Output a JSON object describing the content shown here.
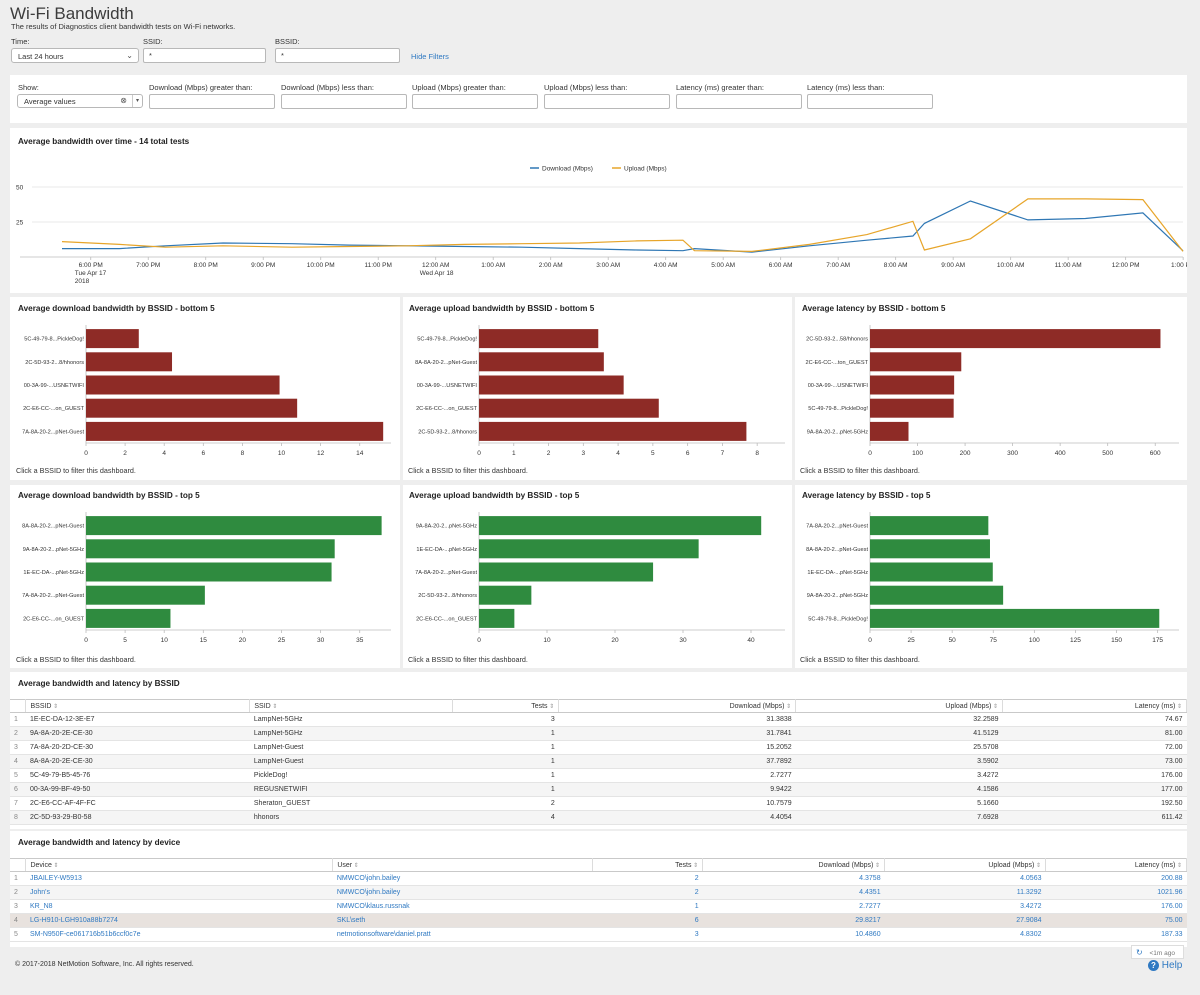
{
  "page": {
    "title": "Wi-Fi Bandwidth",
    "subtitle": "The results of Diagnostics client bandwidth tests on Wi-Fi networks."
  },
  "filters": {
    "time_label": "Time:",
    "time_value": "Last 24 hours",
    "ssid_label": "SSID:",
    "ssid_value": "*",
    "bssid_label": "BSSID:",
    "bssid_value": "*",
    "hide_filters": "Hide Filters"
  },
  "show_filters": {
    "show_label": "Show:",
    "show_value": "Average values",
    "download_gt_label": "Download (Mbps) greater than:",
    "download_lt_label": "Download (Mbps) less than:",
    "upload_gt_label": "Upload (Mbps) greater than:",
    "upload_lt_label": "Upload (Mbps) less than:",
    "latency_gt_label": "Latency (ms) greater than:",
    "latency_lt_label": "Latency (ms) less than:"
  },
  "colors": {
    "download": "#2f77b4",
    "upload": "#e7a52a",
    "bottom_bar": "#8e2b26",
    "top_bar": "#2f8b3f",
    "link": "#2f79c2"
  },
  "chart_hint": "Click a BSSID to filter this dashboard.",
  "chart_data": [
    {
      "id": "timeline",
      "type": "line",
      "title": "Average bandwidth over time - 14 total tests",
      "x": [
        "6:00 PM",
        "7:00 PM",
        "8:00 PM",
        "9:00 PM",
        "10:00 PM",
        "11:00 PM",
        "12:00 AM",
        "1:00 AM",
        "2:00 AM",
        "3:00 AM",
        "4:00 AM",
        "5:00 AM",
        "6:00 AM",
        "7:00 AM",
        "8:00 AM",
        "9:00 AM",
        "10:00 AM",
        "11:00 AM",
        "12:00 PM",
        "1:00 PM"
      ],
      "x_sublabels": {
        "0": [
          "Tue Apr 17",
          "2018"
        ],
        "6": [
          "Wed Apr 18"
        ]
      },
      "yticks": [
        25,
        50
      ],
      "ylim": [
        0,
        55
      ],
      "series": [
        {
          "name": "Download (Mbps)",
          "color": "#2f77b4",
          "points": [
            [
              -0.5,
              6
            ],
            [
              0.5,
              6
            ],
            [
              1.3,
              8
            ],
            [
              2.3,
              10
            ],
            [
              3.5,
              9.5
            ],
            [
              4.5,
              8.5
            ],
            [
              5.5,
              8
            ],
            [
              6.5,
              7.5
            ],
            [
              7.5,
              7
            ],
            [
              8.5,
              6
            ],
            [
              9.5,
              5
            ],
            [
              10.3,
              4.5
            ],
            [
              10.5,
              6
            ],
            [
              11.5,
              3.5
            ],
            [
              12.5,
              8
            ],
            [
              13.5,
              12
            ],
            [
              14.3,
              15
            ],
            [
              14.5,
              24
            ],
            [
              15.3,
              40
            ],
            [
              16.3,
              26.5
            ],
            [
              17.3,
              27.5
            ],
            [
              18.3,
              31.5
            ],
            [
              19.3,
              4.4
            ]
          ]
        },
        {
          "name": "Upload (Mbps)",
          "color": "#e7a52a",
          "points": [
            [
              -0.5,
              11
            ],
            [
              0.5,
              9
            ],
            [
              1.3,
              7
            ],
            [
              2.3,
              8
            ],
            [
              3.5,
              7
            ],
            [
              4.5,
              7.5
            ],
            [
              5.5,
              8
            ],
            [
              6.5,
              9
            ],
            [
              7.5,
              9.5
            ],
            [
              8.5,
              10
            ],
            [
              9.5,
              11.5
            ],
            [
              10.3,
              12
            ],
            [
              10.5,
              4.5
            ],
            [
              11.5,
              4
            ],
            [
              12.5,
              9
            ],
            [
              13.5,
              16
            ],
            [
              14.3,
              25.5
            ],
            [
              14.5,
              5
            ],
            [
              15.3,
              13
            ],
            [
              16.3,
              41.5
            ],
            [
              17.3,
              41.5
            ],
            [
              18.3,
              41
            ],
            [
              19.3,
              4
            ]
          ]
        }
      ]
    },
    {
      "id": "dl_bottom",
      "type": "bar",
      "orientation": "horizontal",
      "title": "Average download bandwidth by BSSID - bottom 5",
      "categories": [
        "5C-49-79-8...PickleDog!",
        "2C-5D-93-2...8/hhonors",
        "00-3A-99-...USNETWIFI",
        "2C-E6-CC-...on_GUEST",
        "7A-8A-20-2...pNet-Guest"
      ],
      "values": [
        2.7,
        4.4,
        9.9,
        10.8,
        15.2
      ],
      "xticks": [
        0,
        2,
        4,
        6,
        8,
        10,
        12,
        14
      ],
      "xlim": [
        0,
        15.6
      ],
      "color": "#8e2b26"
    },
    {
      "id": "ul_bottom",
      "type": "bar",
      "orientation": "horizontal",
      "title": "Average upload bandwidth by BSSID - bottom 5",
      "categories": [
        "5C-49-79-8...PickleDog!",
        "8A-8A-20-2...pNet-Guest",
        "00-3A-99-...USNETWIFI",
        "2C-E6-CC-...on_GUEST",
        "2C-5D-93-2...8/hhonors"
      ],
      "values": [
        3.43,
        3.59,
        4.16,
        5.17,
        7.69
      ],
      "xticks": [
        0,
        1,
        2,
        3,
        4,
        5,
        6,
        7,
        8
      ],
      "xlim": [
        0,
        8.8
      ],
      "color": "#8e2b26"
    },
    {
      "id": "lat_bottom",
      "type": "bar",
      "orientation": "horizontal",
      "title": "Average latency by BSSID - bottom 5",
      "categories": [
        "2C-5D-93-2...58/hhonors",
        "2C-E6-CC-...ton_GUEST",
        "00-3A-99-...USNETWIFI",
        "5C-49-79-8...PickleDog!",
        "9A-8A-20-2...pNet-5GHz"
      ],
      "values": [
        611,
        192,
        177,
        176,
        81
      ],
      "xticks": [
        0,
        100,
        200,
        300,
        400,
        500,
        600
      ],
      "xlim": [
        0,
        650
      ],
      "color": "#8e2b26"
    },
    {
      "id": "dl_top",
      "type": "bar",
      "orientation": "horizontal",
      "title": "Average download bandwidth by BSSID - top 5",
      "categories": [
        "8A-8A-20-2...pNet-Guest",
        "9A-8A-20-2...pNet-5GHz",
        "1E-EC-DA-...pNet-5GHz",
        "7A-8A-20-2...pNet-Guest",
        "2C-E6-CC-...on_GUEST"
      ],
      "values": [
        37.8,
        31.8,
        31.4,
        15.2,
        10.8
      ],
      "xticks": [
        0,
        5,
        10,
        15,
        20,
        25,
        30,
        35
      ],
      "xlim": [
        0,
        39
      ],
      "color": "#2f8b3f"
    },
    {
      "id": "ul_top",
      "type": "bar",
      "orientation": "horizontal",
      "title": "Average upload bandwidth by BSSID - top 5",
      "categories": [
        "9A-8A-20-2...pNet-5GHz",
        "1E-EC-DA-...pNet-5GHz",
        "7A-8A-20-2...pNet-Guest",
        "2C-5D-93-2...8/hhonors",
        "2C-E6-CC-...on_GUEST"
      ],
      "values": [
        41.5,
        32.3,
        25.6,
        7.7,
        5.2
      ],
      "xticks": [
        0,
        10,
        20,
        30,
        40
      ],
      "xlim": [
        0,
        45
      ],
      "color": "#2f8b3f"
    },
    {
      "id": "lat_top",
      "type": "bar",
      "orientation": "horizontal",
      "title": "Average latency by BSSID - top 5",
      "categories": [
        "7A-8A-20-2...pNet-Guest",
        "8A-8A-20-2...pNet-Guest",
        "1E-EC-DA-...pNet-5GHz",
        "9A-8A-20-2...pNet-5GHz",
        "5C-49-79-8...PickleDog!"
      ],
      "values": [
        72,
        73,
        74.7,
        81,
        176
      ],
      "xticks": [
        0,
        25,
        50,
        75,
        100,
        125,
        150,
        175
      ],
      "xlim": [
        0,
        188
      ],
      "color": "#2f8b3f"
    }
  ],
  "bssid_table": {
    "title": "Average bandwidth and latency by BSSID",
    "columns": [
      "BSSID",
      "SSID",
      "Tests",
      "Download (Mbps)",
      "Upload (Mbps)",
      "Latency (ms)"
    ],
    "rows": [
      [
        "1",
        "1E-EC-DA-12-3E-E7",
        "LampNet-5GHz",
        "3",
        "31.3838",
        "32.2589",
        "74.67"
      ],
      [
        "2",
        "9A-8A-20-2E-CE-30",
        "LampNet-5GHz",
        "1",
        "31.7841",
        "41.5129",
        "81.00"
      ],
      [
        "3",
        "7A-8A-20-2D-CE-30",
        "LampNet-Guest",
        "1",
        "15.2052",
        "25.5708",
        "72.00"
      ],
      [
        "4",
        "8A-8A-20-2E-CE-30",
        "LampNet-Guest",
        "1",
        "37.7892",
        "3.5902",
        "73.00"
      ],
      [
        "5",
        "5C-49-79-B5-45-76",
        "PickleDog!",
        "1",
        "2.7277",
        "3.4272",
        "176.00"
      ],
      [
        "6",
        "00-3A-99-BF-49-50",
        "REGUSNETWIFI",
        "1",
        "9.9422",
        "4.1586",
        "177.00"
      ],
      [
        "7",
        "2C-E6-CC-AF-4F-FC",
        "Sheraton_GUEST",
        "2",
        "10.7579",
        "5.1660",
        "192.50"
      ],
      [
        "8",
        "2C-5D-93-29-B0-58",
        "hhonors",
        "4",
        "4.4054",
        "7.6928",
        "611.42"
      ]
    ]
  },
  "device_table": {
    "title": "Average bandwidth and latency by device",
    "columns": [
      "Device",
      "User",
      "Tests",
      "Download (Mbps)",
      "Upload (Mbps)",
      "Latency (ms)"
    ],
    "rows": [
      [
        "1",
        "JBAILEY-W5913",
        "NMWCO\\john.bailey",
        "2",
        "4.3758",
        "4.0563",
        "200.88"
      ],
      [
        "2",
        "John's",
        "NMWCO\\john.bailey",
        "2",
        "4.4351",
        "11.3292",
        "1021.96"
      ],
      [
        "3",
        "KR_N8",
        "NMWCO\\klaus.russnak",
        "1",
        "2.7277",
        "3.4272",
        "176.00"
      ],
      [
        "4",
        "LG-H910-LGH910a88b7274",
        "SKL\\seth",
        "6",
        "29.8217",
        "27.9084",
        "75.00"
      ],
      [
        "5",
        "SM-N950F-ce061716b51b6ccf0c7e",
        "netmotionsoftware\\daniel.pratt",
        "3",
        "10.4860",
        "4.8302",
        "187.33"
      ]
    ]
  },
  "footer": {
    "copyright": "© 2017-2018 NetMotion Software, Inc. All rights reserved.",
    "refresh_time": "<1m ago",
    "help": "Help"
  }
}
